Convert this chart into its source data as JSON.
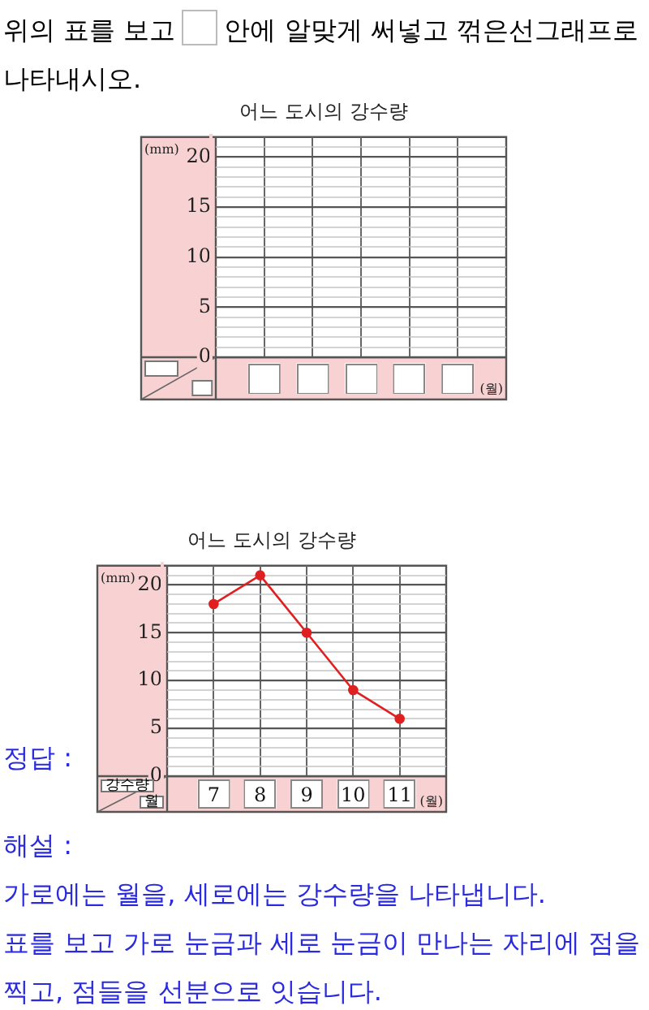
{
  "chart_data": [
    {
      "type": "line",
      "title": "어느 도시의 강수량",
      "xlabel": "(월)",
      "ylabel": "(mm)",
      "categories": [
        null,
        null,
        null,
        null,
        null
      ],
      "series": [
        {
          "color": "#e02020",
          "values": [
            null,
            null,
            null,
            null,
            null
          ]
        }
      ],
      "ylim": [
        0,
        22
      ],
      "yticks": [
        0,
        {
          "value": 1,
          "label": null
        },
        {
          "value": 2,
          "label": null
        },
        {
          "value": 3,
          "label": null
        },
        {
          "value": 4,
          "label": null
        },
        5,
        {
          "value": 6,
          "label": null
        },
        {
          "value": 7,
          "label": null
        },
        {
          "value": 8,
          "label": null
        },
        {
          "value": 9,
          "label": null
        },
        10,
        {
          "value": 11,
          "label": null
        },
        {
          "value": 12,
          "label": null
        },
        {
          "value": 13,
          "label": null
        },
        {
          "value": 14,
          "label": null
        },
        15,
        {
          "value": 16,
          "label": null
        },
        {
          "value": 17,
          "label": null
        },
        {
          "value": 18,
          "label": null
        },
        {
          "value": 19,
          "label": null
        },
        20,
        {
          "value": 21,
          "label": null
        }
      ],
      "grid": true,
      "legend": false,
      "marker": "circle",
      "line_style": "solid",
      "annotations": [
        "위의 표를 보고",
        "안에 알맞게 써넣고 꺾은선그래프로 나타내시오."
      ]
    },
    {
      "type": "line",
      "title": "어느 도시의 강수량",
      "xlabel": "(월)",
      "ylabel": "(mm)",
      "categories": [
        "7",
        "8",
        "9",
        "10",
        "11"
      ],
      "series": [
        {
          "color": "#e02020",
          "values": [
            18,
            21,
            15,
            9,
            6
          ]
        }
      ],
      "ylim": [
        0,
        22
      ],
      "yticks": [
        0,
        {
          "value": 1,
          "label": null
        },
        {
          "value": 2,
          "label": null
        },
        {
          "value": 3,
          "label": null
        },
        {
          "value": 4,
          "label": null
        },
        5,
        {
          "value": 6,
          "label": null
        },
        {
          "value": 7,
          "label": null
        },
        {
          "value": 8,
          "label": null
        },
        {
          "value": 9,
          "label": null
        },
        10,
        {
          "value": 11,
          "label": null
        },
        {
          "value": 12,
          "label": null
        },
        {
          "value": 13,
          "label": null
        },
        {
          "value": 14,
          "label": null
        },
        15,
        {
          "value": 16,
          "label": null
        },
        {
          "value": 17,
          "label": null
        },
        {
          "value": 18,
          "label": null
        },
        {
          "value": 19,
          "label": null
        },
        20,
        {
          "value": 21,
          "label": null
        }
      ],
      "grid": true,
      "legend": false,
      "marker": "circle",
      "line_style": "solid",
      "annotations": [
        "강수량",
        "월",
        "정답 :",
        "해설 :",
        "가로에는 월을, 세로에는 강수량을 나타냅니다.",
        "표를 보고 가로 눈금과 세로 눈금이 만나는 자리에 점을 찍고, 점들을 선분으로 잇습니다."
      ]
    }
  ]
}
